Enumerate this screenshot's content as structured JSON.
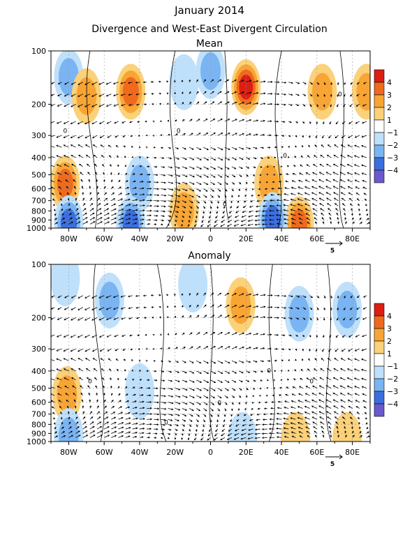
{
  "title": "January 2014",
  "subtitle": "Divergence and West-East Divergent Circulation",
  "colors": {
    "neg4": "#6a5acd",
    "neg3": "#3a6fe0",
    "neg2": "#7ab4f2",
    "neg1": "#bfe0fb",
    "pos1": "#fbd17a",
    "pos2": "#f9a534",
    "pos3": "#f06a1d",
    "pos4": "#dc1e14"
  },
  "chart_data": [
    {
      "type": "heatmap",
      "panel_title": "Mean",
      "x_ticks": [
        "80W",
        "60W",
        "40W",
        "20W",
        "0",
        "20E",
        "40E",
        "60E",
        "80E"
      ],
      "x_values": [
        -80,
        -60,
        -40,
        -20,
        0,
        20,
        40,
        60,
        80
      ],
      "xlim": [
        -90,
        90
      ],
      "y_ticks": [
        "100",
        "200",
        "300",
        "400",
        "500",
        "600",
        "700",
        "800",
        "900",
        "1000"
      ],
      "y_values": [
        100,
        200,
        300,
        400,
        500,
        600,
        700,
        800,
        900,
        1000
      ],
      "ylim": [
        1000,
        100
      ],
      "y_scale": "log",
      "colorbar": {
        "ticks": [
          "4",
          "3",
          "2",
          "1",
          "−1",
          "−2",
          "−3",
          "−4"
        ]
      },
      "vector_reference": "5",
      "contour_label": "0",
      "blobs": [
        {
          "lon": -80,
          "p": 140,
          "val": -2
        },
        {
          "lon": -70,
          "p": 180,
          "val": 2
        },
        {
          "lon": -45,
          "p": 170,
          "val": 3
        },
        {
          "lon": -15,
          "p": 150,
          "val": -1
        },
        {
          "lon": 20,
          "p": 160,
          "val": 4
        },
        {
          "lon": 0,
          "p": 130,
          "val": -2
        },
        {
          "lon": 63,
          "p": 170,
          "val": 2
        },
        {
          "lon": 88,
          "p": 170,
          "val": 2
        },
        {
          "lon": -82,
          "p": 560,
          "val": 3
        },
        {
          "lon": -40,
          "p": 560,
          "val": -2
        },
        {
          "lon": -15,
          "p": 800,
          "val": 2
        },
        {
          "lon": 33,
          "p": 560,
          "val": 2
        },
        {
          "lon": -80,
          "p": 940,
          "val": -3
        },
        {
          "lon": -45,
          "p": 950,
          "val": -3
        },
        {
          "lon": 50,
          "p": 950,
          "val": 3
        },
        {
          "lon": 35,
          "p": 900,
          "val": -3
        }
      ]
    },
    {
      "type": "heatmap",
      "panel_title": "Anomaly",
      "x_ticks": [
        "80W",
        "60W",
        "40W",
        "20W",
        "0",
        "20E",
        "40E",
        "60E",
        "80E"
      ],
      "x_values": [
        -80,
        -60,
        -40,
        -20,
        0,
        20,
        40,
        60,
        80
      ],
      "xlim": [
        -90,
        90
      ],
      "y_ticks": [
        "100",
        "200",
        "300",
        "400",
        "500",
        "600",
        "700",
        "800",
        "900",
        "1000"
      ],
      "y_values": [
        100,
        200,
        300,
        400,
        500,
        600,
        700,
        800,
        900,
        1000
      ],
      "ylim": [
        1000,
        100
      ],
      "y_scale": "log",
      "colorbar": {
        "ticks": [
          "4",
          "3",
          "2",
          "1",
          "−1",
          "−2",
          "−3",
          "−4"
        ]
      },
      "vector_reference": "5",
      "contour_label": "0",
      "blobs": [
        {
          "lon": -82,
          "p": 120,
          "val": -1
        },
        {
          "lon": -57,
          "p": 160,
          "val": -2
        },
        {
          "lon": -10,
          "p": 130,
          "val": -1
        },
        {
          "lon": 17,
          "p": 170,
          "val": 2
        },
        {
          "lon": 50,
          "p": 190,
          "val": -2
        },
        {
          "lon": 77,
          "p": 180,
          "val": -2
        },
        {
          "lon": -81,
          "p": 540,
          "val": 2
        },
        {
          "lon": -40,
          "p": 520,
          "val": -1
        },
        {
          "lon": -80,
          "p": 930,
          "val": -2
        },
        {
          "lon": 48,
          "p": 980,
          "val": 1
        },
        {
          "lon": 18,
          "p": 980,
          "val": -1
        },
        {
          "lon": 77,
          "p": 980,
          "val": 1
        }
      ]
    }
  ]
}
